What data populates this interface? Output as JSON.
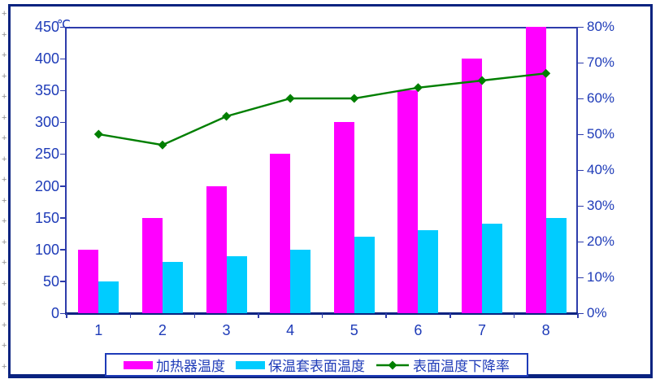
{
  "chart_data": {
    "type": "combo-bar-line",
    "categories": [
      "1",
      "2",
      "3",
      "4",
      "5",
      "6",
      "7",
      "8"
    ],
    "series": [
      {
        "name": "加热器温度",
        "type": "bar",
        "axis": "left",
        "color": "#ff00ff",
        "values": [
          100,
          150,
          200,
          250,
          300,
          350,
          400,
          450
        ]
      },
      {
        "name": "保温套表面温度",
        "type": "bar",
        "axis": "left",
        "color": "#00ccff",
        "values": [
          50,
          80,
          90,
          100,
          120,
          130,
          140,
          150
        ]
      },
      {
        "name": "表面温度下降率",
        "type": "line",
        "axis": "right",
        "color": "#007f00",
        "marker": "diamond",
        "unit": "%",
        "values": [
          50,
          47,
          55,
          60,
          60,
          63,
          65,
          67
        ]
      }
    ],
    "left_axis": {
      "unit": "℃",
      "min": 0,
      "max": 450,
      "step": 50,
      "ticks": [
        "450",
        "400",
        "350",
        "300",
        "250",
        "200",
        "150",
        "100",
        "50",
        "0"
      ]
    },
    "right_axis": {
      "min": 0,
      "max": 80,
      "step": 10,
      "ticks": [
        "80%",
        "70%",
        "60%",
        "50%",
        "40%",
        "30%",
        "20%",
        "10%",
        "0%"
      ]
    },
    "x_axis": {
      "ticks": [
        "1",
        "2",
        "3",
        "4",
        "5",
        "6",
        "7",
        "8"
      ]
    },
    "grid": false,
    "legend_position": "bottom"
  },
  "legend": {
    "items": [
      {
        "label": "加热器温度",
        "marker": "rect",
        "color": "#ff00ff"
      },
      {
        "label": "保温套表面温度",
        "marker": "rect",
        "color": "#00ccff"
      },
      {
        "label": "表面温度下降率",
        "marker": "line-diamond",
        "color": "#007f00"
      }
    ]
  },
  "colors": {
    "label_blue": "#1e3bb8",
    "axis_blue": "#2e3cab",
    "frame_navy": "#0a2380",
    "bar_heater": "#ff00ff",
    "bar_jacket": "#00ccff",
    "line_green": "#007f00"
  }
}
